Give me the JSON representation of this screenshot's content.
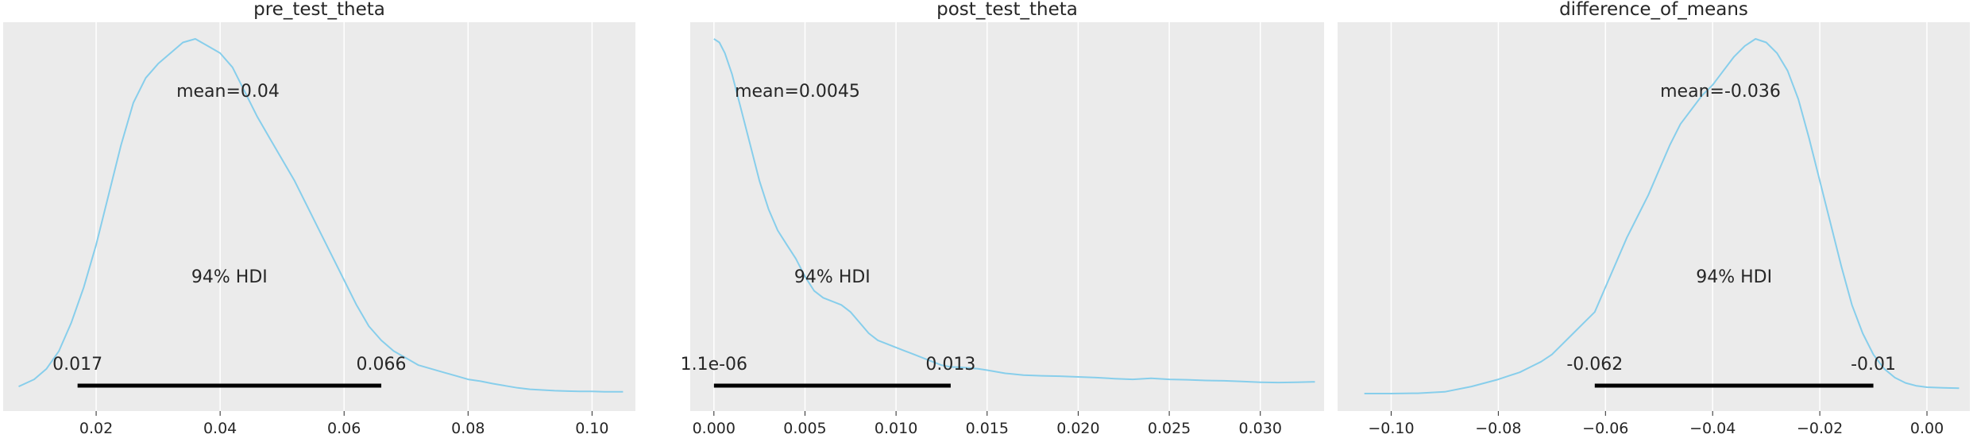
{
  "chart_data": [
    {
      "type": "line",
      "title": "pre_test_theta",
      "xlim": [
        0.005,
        0.107
      ],
      "xticks": [
        0.02,
        0.04,
        0.06,
        0.08,
        0.1
      ],
      "xtick_labels": [
        "0.02",
        "0.04",
        "0.06",
        "0.08",
        "0.10"
      ],
      "grid": true,
      "mean_label": "mean=0.04",
      "hdi_label": "94% HDI",
      "hdi": [
        0.017,
        0.066
      ],
      "hdi_low_label": "0.017",
      "hdi_high_label": "0.066",
      "density": {
        "x": [
          0.0075,
          0.01,
          0.012,
          0.014,
          0.016,
          0.018,
          0.02,
          0.022,
          0.024,
          0.026,
          0.028,
          0.03,
          0.032,
          0.034,
          0.036,
          0.038,
          0.04,
          0.042,
          0.044,
          0.046,
          0.048,
          0.05,
          0.052,
          0.054,
          0.056,
          0.058,
          0.06,
          0.062,
          0.064,
          0.066,
          0.068,
          0.07,
          0.072,
          0.074,
          0.076,
          0.078,
          0.08,
          0.082,
          0.084,
          0.086,
          0.088,
          0.09,
          0.092,
          0.094,
          0.096,
          0.098,
          0.1,
          0.102,
          0.105
        ],
        "y": [
          0.02,
          0.04,
          0.07,
          0.12,
          0.2,
          0.3,
          0.42,
          0.56,
          0.7,
          0.82,
          0.89,
          0.93,
          0.96,
          0.99,
          1.0,
          0.98,
          0.96,
          0.92,
          0.85,
          0.78,
          0.72,
          0.66,
          0.6,
          0.53,
          0.46,
          0.39,
          0.32,
          0.25,
          0.19,
          0.15,
          0.12,
          0.1,
          0.08,
          0.07,
          0.06,
          0.05,
          0.04,
          0.035,
          0.028,
          0.022,
          0.016,
          0.012,
          0.01,
          0.008,
          0.007,
          0.006,
          0.006,
          0.005,
          0.005
        ]
      }
    },
    {
      "type": "line",
      "title": "post_test_theta",
      "xlim": [
        -0.0013,
        0.0335
      ],
      "xticks": [
        0.0,
        0.005,
        0.01,
        0.015,
        0.02,
        0.025,
        0.03
      ],
      "xtick_labels": [
        "0.000",
        "0.005",
        "0.010",
        "0.015",
        "0.020",
        "0.025",
        "0.030"
      ],
      "grid": true,
      "mean_label": "mean=0.0045",
      "hdi_label": "94% HDI",
      "hdi": [
        1.1e-06,
        0.013
      ],
      "hdi_low_label": "1.1e-06",
      "hdi_high_label": "0.013",
      "density": {
        "x": [
          0.0,
          0.0003,
          0.0006,
          0.001,
          0.0015,
          0.002,
          0.0025,
          0.003,
          0.0035,
          0.004,
          0.0045,
          0.005,
          0.0055,
          0.006,
          0.0065,
          0.007,
          0.0075,
          0.008,
          0.0085,
          0.009,
          0.0095,
          0.01,
          0.0105,
          0.011,
          0.0115,
          0.012,
          0.0125,
          0.013,
          0.0135,
          0.014,
          0.0145,
          0.015,
          0.016,
          0.017,
          0.018,
          0.019,
          0.02,
          0.021,
          0.022,
          0.023,
          0.024,
          0.025,
          0.026,
          0.027,
          0.028,
          0.029,
          0.03,
          0.031,
          0.032,
          0.033
        ],
        "y": [
          1.0,
          0.99,
          0.96,
          0.9,
          0.8,
          0.7,
          0.6,
          0.52,
          0.46,
          0.42,
          0.38,
          0.33,
          0.29,
          0.27,
          0.26,
          0.25,
          0.23,
          0.2,
          0.17,
          0.15,
          0.14,
          0.13,
          0.12,
          0.11,
          0.1,
          0.09,
          0.08,
          0.075,
          0.074,
          0.072,
          0.07,
          0.066,
          0.057,
          0.052,
          0.05,
          0.049,
          0.047,
          0.045,
          0.042,
          0.04,
          0.043,
          0.04,
          0.039,
          0.037,
          0.036,
          0.034,
          0.032,
          0.031,
          0.032,
          0.033
        ]
      }
    },
    {
      "type": "line",
      "title": "difference_of_means",
      "xlim": [
        -0.11,
        0.008
      ],
      "xticks": [
        -0.1,
        -0.08,
        -0.06,
        -0.04,
        -0.02,
        0.0
      ],
      "xtick_labels": [
        "−0.10",
        "−0.08",
        "−0.06",
        "−0.04",
        "−0.02",
        "0.00"
      ],
      "grid": true,
      "mean_label": "mean=-0.036",
      "hdi_label": "94% HDI",
      "hdi": [
        -0.062,
        -0.01
      ],
      "hdi_low_label": "-0.062",
      "hdi_high_label": "-0.01",
      "density": {
        "x": [
          -0.105,
          -0.1,
          -0.095,
          -0.09,
          -0.085,
          -0.08,
          -0.078,
          -0.076,
          -0.074,
          -0.072,
          -0.07,
          -0.068,
          -0.066,
          -0.064,
          -0.062,
          -0.06,
          -0.058,
          -0.056,
          -0.054,
          -0.052,
          -0.05,
          -0.048,
          -0.046,
          -0.044,
          -0.042,
          -0.04,
          -0.038,
          -0.036,
          -0.034,
          -0.032,
          -0.03,
          -0.028,
          -0.026,
          -0.024,
          -0.022,
          -0.02,
          -0.018,
          -0.016,
          -0.014,
          -0.012,
          -0.01,
          -0.008,
          -0.006,
          -0.004,
          -0.002,
          0.0,
          0.003,
          0.006
        ],
        "y": [
          0.0,
          0.0,
          0.001,
          0.005,
          0.02,
          0.04,
          0.05,
          0.06,
          0.075,
          0.09,
          0.11,
          0.14,
          0.17,
          0.2,
          0.23,
          0.3,
          0.37,
          0.44,
          0.5,
          0.56,
          0.63,
          0.7,
          0.76,
          0.8,
          0.84,
          0.87,
          0.91,
          0.95,
          0.98,
          1.0,
          0.99,
          0.96,
          0.91,
          0.83,
          0.72,
          0.6,
          0.48,
          0.36,
          0.25,
          0.17,
          0.11,
          0.07,
          0.045,
          0.03,
          0.022,
          0.018,
          0.016,
          0.015
        ]
      }
    }
  ],
  "colors": {
    "kde": "#87ceeb",
    "hdi_bar": "#000000",
    "panel_background": "#ebebeb",
    "grid": "#ffffff",
    "text": "#262626"
  }
}
